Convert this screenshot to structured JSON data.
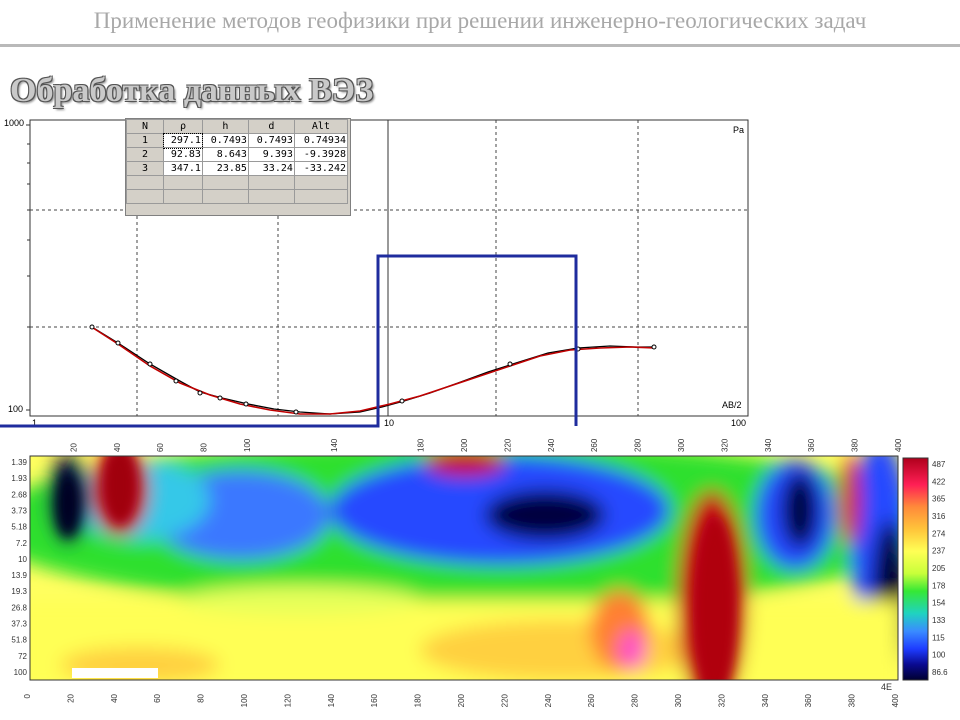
{
  "header": {
    "title": "Применение методов геофизики при решении инженерно-геологических задач"
  },
  "slide": {
    "title": "Обработка данных ВЭЗ"
  },
  "ves_table": {
    "columns": [
      "N",
      "ρ",
      "h",
      "d",
      "Alt"
    ],
    "rows": [
      {
        "n": "1",
        "rho": "297.1",
        "h": "0.7493",
        "d": "0.7493",
        "alt": "0.74934"
      },
      {
        "n": "2",
        "rho": "92.83",
        "h": "8.643",
        "d": "9.393",
        "alt": "-9.3928"
      },
      {
        "n": "3",
        "rho": "347.1",
        "h": "23.85",
        "d": "33.24",
        "alt": "-33.242"
      }
    ]
  },
  "ves_curve_plot": {
    "y_labels": {
      "top": "1000",
      "bottom": "100"
    },
    "x_labels": [
      "1",
      "10",
      "100"
    ],
    "curve_label": "Pa",
    "x_axis_label": "AB/2"
  },
  "section": {
    "x_ticks": [
      "0",
      "20",
      "40",
      "60",
      "80",
      "100",
      "120",
      "140",
      "160",
      "180",
      "200",
      "220",
      "240",
      "260",
      "280",
      "300",
      "320",
      "340",
      "360",
      "380",
      "400"
    ],
    "top_ticks": [
      "20",
      "40",
      "60",
      "80",
      "100",
      "140",
      "180",
      "200",
      "220",
      "240",
      "260",
      "280",
      "300",
      "320",
      "340",
      "360",
      "380",
      "400"
    ],
    "depth_ticks": [
      "1.39",
      "1.93",
      "2.68",
      "3.73",
      "5.18",
      "7.2",
      "10",
      "13.9",
      "19.3",
      "26.8",
      "37.3",
      "51.8",
      "72",
      "100"
    ],
    "colorbar": [
      "487",
      "422",
      "365",
      "316",
      "274",
      "237",
      "205",
      "178",
      "154",
      "133",
      "115",
      "100",
      "86.6"
    ],
    "corner_text": "4E"
  },
  "colors": {
    "frame_blue": "#1f2c9e",
    "header_gray": "#a8a8a8",
    "curve_red": "#c00000"
  }
}
